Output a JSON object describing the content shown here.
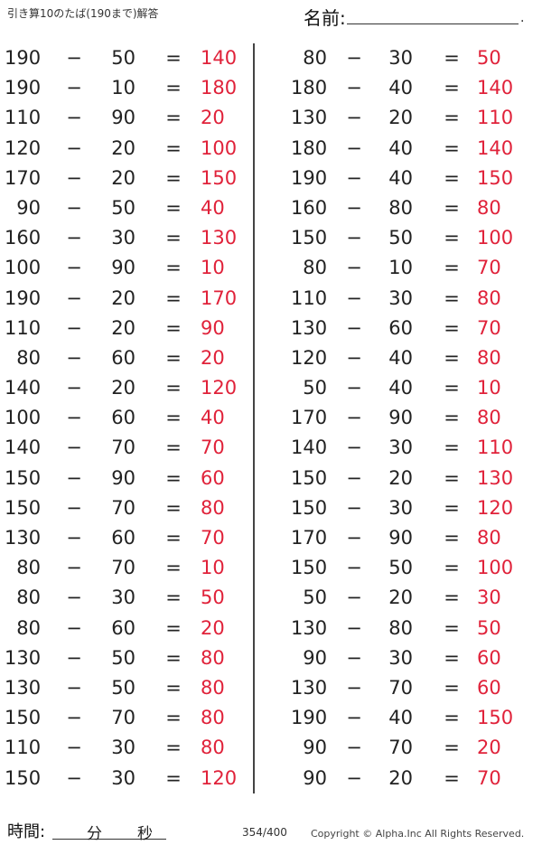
{
  "header": {
    "title": "引き算10のたば(190まで)解答",
    "name_label": "名前:",
    "name_end": "."
  },
  "problems": {
    "left": [
      {
        "a": "190",
        "op": "−",
        "b": "50",
        "eq": "=",
        "ans": "140"
      },
      {
        "a": "190",
        "op": "−",
        "b": "10",
        "eq": "=",
        "ans": "180"
      },
      {
        "a": "110",
        "op": "−",
        "b": "90",
        "eq": "=",
        "ans": "20"
      },
      {
        "a": "120",
        "op": "−",
        "b": "20",
        "eq": "=",
        "ans": "100"
      },
      {
        "a": "170",
        "op": "−",
        "b": "20",
        "eq": "=",
        "ans": "150"
      },
      {
        "a": "90",
        "op": "−",
        "b": "50",
        "eq": "=",
        "ans": "40"
      },
      {
        "a": "160",
        "op": "−",
        "b": "30",
        "eq": "=",
        "ans": "130"
      },
      {
        "a": "100",
        "op": "−",
        "b": "90",
        "eq": "=",
        "ans": "10"
      },
      {
        "a": "190",
        "op": "−",
        "b": "20",
        "eq": "=",
        "ans": "170"
      },
      {
        "a": "110",
        "op": "−",
        "b": "20",
        "eq": "=",
        "ans": "90"
      },
      {
        "a": "80",
        "op": "−",
        "b": "60",
        "eq": "=",
        "ans": "20"
      },
      {
        "a": "140",
        "op": "−",
        "b": "20",
        "eq": "=",
        "ans": "120"
      },
      {
        "a": "100",
        "op": "−",
        "b": "60",
        "eq": "=",
        "ans": "40"
      },
      {
        "a": "140",
        "op": "−",
        "b": "70",
        "eq": "=",
        "ans": "70"
      },
      {
        "a": "150",
        "op": "−",
        "b": "90",
        "eq": "=",
        "ans": "60"
      },
      {
        "a": "150",
        "op": "−",
        "b": "70",
        "eq": "=",
        "ans": "80"
      },
      {
        "a": "130",
        "op": "−",
        "b": "60",
        "eq": "=",
        "ans": "70"
      },
      {
        "a": "80",
        "op": "−",
        "b": "70",
        "eq": "=",
        "ans": "10"
      },
      {
        "a": "80",
        "op": "−",
        "b": "30",
        "eq": "=",
        "ans": "50"
      },
      {
        "a": "80",
        "op": "−",
        "b": "60",
        "eq": "=",
        "ans": "20"
      },
      {
        "a": "130",
        "op": "−",
        "b": "50",
        "eq": "=",
        "ans": "80"
      },
      {
        "a": "130",
        "op": "−",
        "b": "50",
        "eq": "=",
        "ans": "80"
      },
      {
        "a": "150",
        "op": "−",
        "b": "70",
        "eq": "=",
        "ans": "80"
      },
      {
        "a": "110",
        "op": "−",
        "b": "30",
        "eq": "=",
        "ans": "80"
      },
      {
        "a": "150",
        "op": "−",
        "b": "30",
        "eq": "=",
        "ans": "120"
      }
    ],
    "right": [
      {
        "a": "80",
        "op": "−",
        "b": "30",
        "eq": "=",
        "ans": "50"
      },
      {
        "a": "180",
        "op": "−",
        "b": "40",
        "eq": "=",
        "ans": "140"
      },
      {
        "a": "130",
        "op": "−",
        "b": "20",
        "eq": "=",
        "ans": "110"
      },
      {
        "a": "180",
        "op": "−",
        "b": "40",
        "eq": "=",
        "ans": "140"
      },
      {
        "a": "190",
        "op": "−",
        "b": "40",
        "eq": "=",
        "ans": "150"
      },
      {
        "a": "160",
        "op": "−",
        "b": "80",
        "eq": "=",
        "ans": "80"
      },
      {
        "a": "150",
        "op": "−",
        "b": "50",
        "eq": "=",
        "ans": "100"
      },
      {
        "a": "80",
        "op": "−",
        "b": "10",
        "eq": "=",
        "ans": "70"
      },
      {
        "a": "110",
        "op": "−",
        "b": "30",
        "eq": "=",
        "ans": "80"
      },
      {
        "a": "130",
        "op": "−",
        "b": "60",
        "eq": "=",
        "ans": "70"
      },
      {
        "a": "120",
        "op": "−",
        "b": "40",
        "eq": "=",
        "ans": "80"
      },
      {
        "a": "50",
        "op": "−",
        "b": "40",
        "eq": "=",
        "ans": "10"
      },
      {
        "a": "170",
        "op": "−",
        "b": "90",
        "eq": "=",
        "ans": "80"
      },
      {
        "a": "140",
        "op": "−",
        "b": "30",
        "eq": "=",
        "ans": "110"
      },
      {
        "a": "150",
        "op": "−",
        "b": "20",
        "eq": "=",
        "ans": "130"
      },
      {
        "a": "150",
        "op": "−",
        "b": "30",
        "eq": "=",
        "ans": "120"
      },
      {
        "a": "170",
        "op": "−",
        "b": "90",
        "eq": "=",
        "ans": "80"
      },
      {
        "a": "150",
        "op": "−",
        "b": "50",
        "eq": "=",
        "ans": "100"
      },
      {
        "a": "50",
        "op": "−",
        "b": "20",
        "eq": "=",
        "ans": "30"
      },
      {
        "a": "130",
        "op": "−",
        "b": "80",
        "eq": "=",
        "ans": "50"
      },
      {
        "a": "90",
        "op": "−",
        "b": "30",
        "eq": "=",
        "ans": "60"
      },
      {
        "a": "130",
        "op": "−",
        "b": "70",
        "eq": "=",
        "ans": "60"
      },
      {
        "a": "190",
        "op": "−",
        "b": "40",
        "eq": "=",
        "ans": "150"
      },
      {
        "a": "90",
        "op": "−",
        "b": "70",
        "eq": "=",
        "ans": "20"
      },
      {
        "a": "90",
        "op": "−",
        "b": "20",
        "eq": "=",
        "ans": "70"
      }
    ]
  },
  "footer": {
    "time_label": "時間:",
    "minutes_label": "分",
    "seconds_label": "秒",
    "page": "354/400",
    "copyright": "Copyright ©  Alpha.Inc All Rights Reserved."
  },
  "colors": {
    "answer": "#e0223a"
  }
}
